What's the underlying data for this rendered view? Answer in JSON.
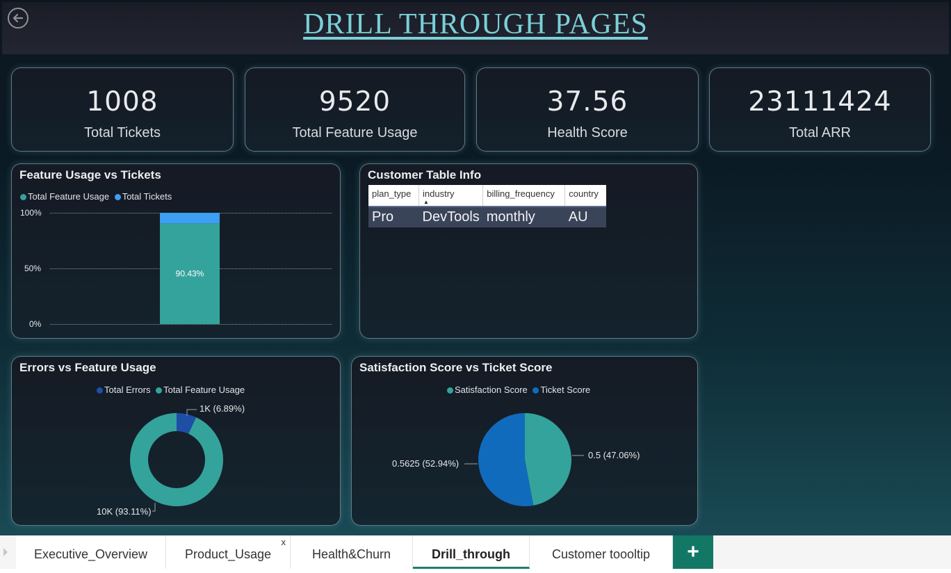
{
  "title": "DRILL THROUGH PAGES",
  "kpis": [
    {
      "value": "1008",
      "label": "Total Tickets"
    },
    {
      "value": "9520",
      "label": "Total Feature Usage"
    },
    {
      "value": "37.56",
      "label": "Health Score"
    },
    {
      "value": "23111424",
      "label": "Total ARR"
    }
  ],
  "colors": {
    "teal": "#34a39b",
    "light_blue": "#3d9ef2",
    "dark_blue": "#1f4ea6",
    "mid_blue": "#116bbd",
    "title": "#7ad0d8",
    "active_tab": "#1e7e6e"
  },
  "feature_chart": {
    "title": "Feature Usage vs Tickets",
    "legend": [
      "Total Feature Usage",
      "Total Tickets"
    ],
    "ticks": [
      "100%",
      "50%",
      "0%"
    ],
    "bar_label": "90.43%",
    "chart_data": {
      "type": "bar",
      "stacked": "100%",
      "series": [
        {
          "name": "Total Feature Usage",
          "values": [
            90.43
          ]
        },
        {
          "name": "Total Tickets",
          "values": [
            9.57
          ]
        }
      ],
      "ylim": [
        0,
        100
      ]
    }
  },
  "customer_table": {
    "title": "Customer Table Info",
    "headers": [
      "plan_type",
      "industry",
      "billing_frequency",
      "country"
    ],
    "sort_arrow": "▲",
    "rows": [
      [
        "Pro",
        "DevTools",
        "monthly",
        "AU"
      ]
    ]
  },
  "errors_chart": {
    "title": "Errors vs Feature Usage",
    "legend": [
      "Total Errors",
      "Total Feature Usage"
    ],
    "label_errors": "1K (6.89%)",
    "label_usage": "10K (93.11%)",
    "chart_data": {
      "type": "pie",
      "donut": true,
      "labels": [
        "Total Errors",
        "Total Feature Usage"
      ],
      "values": [
        6.89,
        93.11
      ]
    }
  },
  "satisfaction_chart": {
    "title": "Satisfaction Score vs Ticket Score",
    "legend": [
      "Satisfaction Score",
      "Ticket Score"
    ],
    "label_satisfaction": "0.5 (47.06%)",
    "label_ticket": "0.5625 (52.94%)",
    "chart_data": {
      "type": "pie",
      "labels": [
        "Satisfaction Score",
        "Ticket Score"
      ],
      "values": [
        0.5,
        0.5625
      ]
    }
  },
  "tabs": [
    {
      "label": "Executive_Overview"
    },
    {
      "label": "Product_Usage",
      "close": "x"
    },
    {
      "label": "Health&Churn"
    },
    {
      "label": "Drill_through",
      "active": true
    },
    {
      "label": "Customer toooltip"
    }
  ],
  "add_tab": "+"
}
